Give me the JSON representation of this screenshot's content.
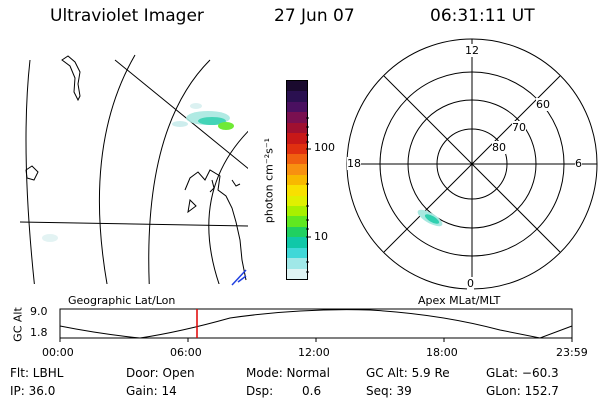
{
  "header": {
    "title": "Ultraviolet Imager",
    "date": "27 Jun 07",
    "time": "06:31:11 UT"
  },
  "geo_map": {
    "caption": "Geographic Lat/Lon"
  },
  "colorbar": {
    "unit_label": "photon cm⁻²s⁻¹",
    "ticks": [
      "100",
      "10"
    ],
    "colors": [
      "#1a0a2e",
      "#2a1050",
      "#4a1060",
      "#7a1050",
      "#a01030",
      "#c81818",
      "#e03010",
      "#f06010",
      "#f89010",
      "#f8b800",
      "#f8e000",
      "#e0f000",
      "#a8f000",
      "#60e820",
      "#20d060",
      "#10c8a8",
      "#40d8d8",
      "#a0e8e8",
      "#e0f4f4"
    ]
  },
  "polar_plot": {
    "caption": "Apex MLat/MLT",
    "lat_labels": [
      "60",
      "70",
      "80"
    ],
    "time_labels": {
      "top": "12",
      "left": "18",
      "right": "6",
      "bottom": "0"
    }
  },
  "altitude_plot": {
    "axis_label": "GC Alt",
    "y_ticks": [
      "9.0",
      "1.8"
    ],
    "x_ticks": [
      "00:00",
      "06:00",
      "12:00",
      "18:00",
      "23:59"
    ],
    "marker_color": "#e00000"
  },
  "status": {
    "flt": "Flt: LBHL",
    "ip": "IP: 36.0",
    "door": "Door: Open",
    "gain": "Gain: 14",
    "mode": "Mode: Normal",
    "dsp_label": "Dsp:",
    "dsp_value": "0.6",
    "gc_alt": "GC Alt: 5.9 Re",
    "seq": "Seq: 39",
    "glat": "GLat: −60.3",
    "glon": "GLon: 152.7"
  }
}
